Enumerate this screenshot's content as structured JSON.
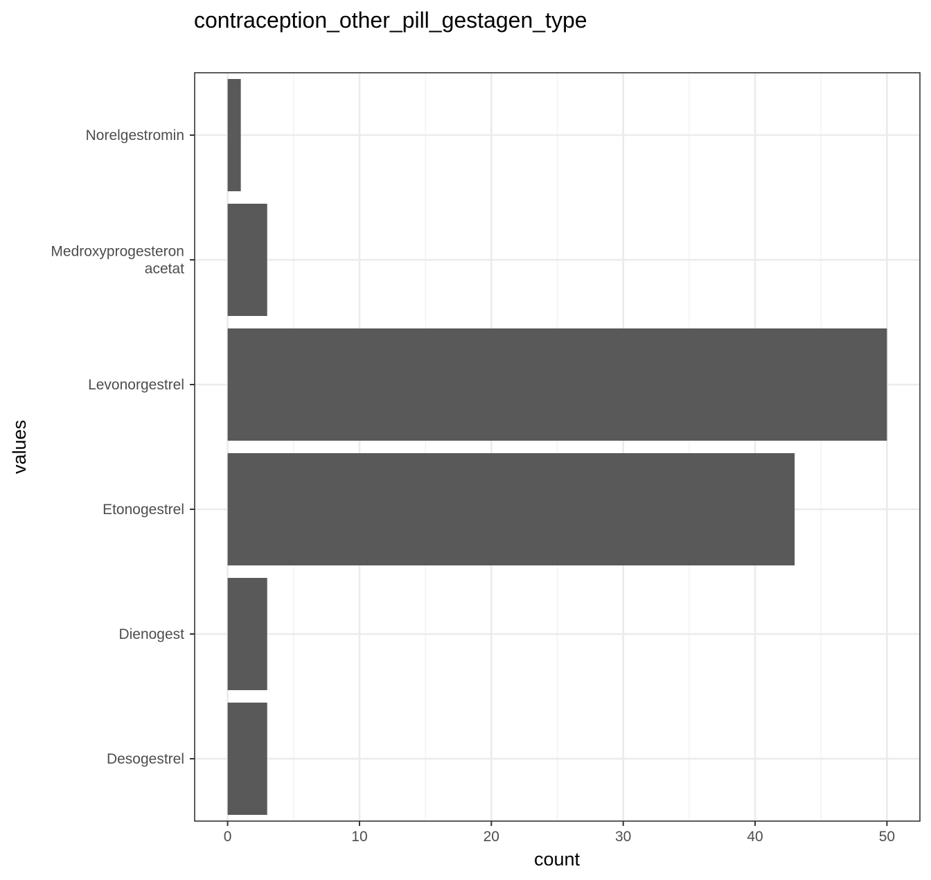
{
  "chart_data": {
    "type": "bar",
    "orientation": "horizontal",
    "title": "contraception_other_pill_gestagen_type",
    "xlabel": "count",
    "ylabel": "values",
    "categories": [
      [
        "Norelgestromin"
      ],
      [
        "Medroxyprogesteron",
        "acetat"
      ],
      [
        "Levonorgestrel"
      ],
      [
        "Etonogestrel"
      ],
      [
        "Dienogest"
      ],
      [
        "Desogestrel"
      ]
    ],
    "values": [
      1,
      3,
      50,
      43,
      3,
      3
    ],
    "xlim": [
      -2.5,
      52.5
    ],
    "xticks": [
      0,
      10,
      20,
      30,
      40,
      50
    ],
    "grid": true,
    "legend": "none",
    "colors": {
      "bar": "#595959",
      "grid_major": "#ebebeb",
      "grid_minor": "#f2f2f2",
      "panel_border": "#333333",
      "tick": "#333333"
    }
  }
}
